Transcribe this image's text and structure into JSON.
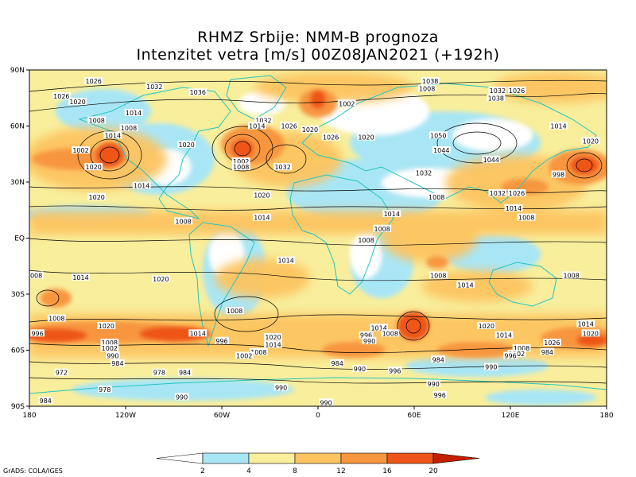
{
  "header": {
    "title": "RHMZ Srbije: NMM-B prognoza",
    "subtitle": "Intenzitet vetra [m/s] 00Z08JAN2021 (+192h)"
  },
  "axes": {
    "lon_labels": [
      "180",
      "120W",
      "60W",
      "0",
      "60E",
      "120E",
      "180"
    ],
    "lat_labels": [
      "90N",
      "60N",
      "30N",
      "EQ",
      "30S",
      "60S",
      "90S"
    ]
  },
  "colorbar": {
    "ticks": [
      "2",
      "4",
      "8",
      "12",
      "16",
      "20"
    ],
    "colors": [
      "#ffffff",
      "#a9e6f5",
      "#f8ee9c",
      "#fdc461",
      "#f89640",
      "#ee5419",
      "#c41e00"
    ]
  },
  "colors": {
    "land_outline": "#22c6c0",
    "isobar": "#000000",
    "frame": "#000000"
  },
  "isobars": {
    "labels": [
      {
        "text": "1026",
        "lon": -140,
        "lat": 84
      },
      {
        "text": "1032",
        "lon": -102,
        "lat": 81
      },
      {
        "text": "1036",
        "lon": -75,
        "lat": 78
      },
      {
        "text": "1026",
        "lon": -160,
        "lat": 76
      },
      {
        "text": "1020",
        "lon": -150,
        "lat": 73
      },
      {
        "text": "1014",
        "lon": -115,
        "lat": 67
      },
      {
        "text": "1008",
        "lon": -138,
        "lat": 63
      },
      {
        "text": "1008",
        "lon": -118,
        "lat": 59
      },
      {
        "text": "1014",
        "lon": -128,
        "lat": 55
      },
      {
        "text": "1002",
        "lon": -148,
        "lat": 47
      },
      {
        "text": "1020",
        "lon": -82,
        "lat": 50
      },
      {
        "text": "1020",
        "lon": -140,
        "lat": 38
      },
      {
        "text": "1014",
        "lon": -110,
        "lat": 28
      },
      {
        "text": "1020",
        "lon": -138,
        "lat": 22
      },
      {
        "text": "1008",
        "lon": -84,
        "lat": 9
      },
      {
        "text": "1014",
        "lon": -35,
        "lat": 11
      },
      {
        "text": "1020",
        "lon": -35,
        "lat": 23
      },
      {
        "text": "1032",
        "lon": -34,
        "lat": 63
      },
      {
        "text": "1026",
        "lon": -18,
        "lat": 60
      },
      {
        "text": "1014",
        "lon": -38,
        "lat": 60
      },
      {
        "text": "1020",
        "lon": -5,
        "lat": 58
      },
      {
        "text": "1002",
        "lon": -48,
        "lat": 41
      },
      {
        "text": "1008",
        "lon": -48,
        "lat": 38
      },
      {
        "text": "1032",
        "lon": -22,
        "lat": 38
      },
      {
        "text": "1002",
        "lon": 18,
        "lat": 72
      },
      {
        "text": "1026",
        "lon": 8,
        "lat": 54
      },
      {
        "text": "1020",
        "lon": 30,
        "lat": 54
      },
      {
        "text": "1038",
        "lon": 70,
        "lat": 84
      },
      {
        "text": "1008",
        "lon": 68,
        "lat": 80
      },
      {
        "text": "1032",
        "lon": 112,
        "lat": 79
      },
      {
        "text": "1038",
        "lon": 111,
        "lat": 75
      },
      {
        "text": "1026",
        "lon": 124,
        "lat": 79
      },
      {
        "text": "1050",
        "lon": 75,
        "lat": 55
      },
      {
        "text": "1044",
        "lon": 77,
        "lat": 47
      },
      {
        "text": "1044",
        "lon": 108,
        "lat": 42
      },
      {
        "text": "1032",
        "lon": 66,
        "lat": 35
      },
      {
        "text": "1014",
        "lon": 150,
        "lat": 60
      },
      {
        "text": "1020",
        "lon": 170,
        "lat": 52
      },
      {
        "text": "998",
        "lon": 150,
        "lat": 34
      },
      {
        "text": "1032",
        "lon": 112,
        "lat": 24
      },
      {
        "text": "1026",
        "lon": 124,
        "lat": 24
      },
      {
        "text": "1014",
        "lon": 122,
        "lat": 16
      },
      {
        "text": "1008",
        "lon": 130,
        "lat": 11
      },
      {
        "text": "1008",
        "lon": 74,
        "lat": 22
      },
      {
        "text": "1014",
        "lon": 46,
        "lat": 13
      },
      {
        "text": "1008",
        "lon": 40,
        "lat": 5
      },
      {
        "text": "1008",
        "lon": 30,
        "lat": -1
      },
      {
        "text": "1014",
        "lon": -20,
        "lat": -12
      },
      {
        "text": "1008",
        "lon": -163,
        "lat": -43
      },
      {
        "text": "1014",
        "lon": -148,
        "lat": -21
      },
      {
        "text": "1020",
        "lon": -98,
        "lat": -22
      },
      {
        "text": "1020",
        "lon": -132,
        "lat": -47
      },
      {
        "text": "996",
        "lon": -175,
        "lat": -51
      },
      {
        "text": "1008",
        "lon": -130,
        "lat": -56
      },
      {
        "text": "1002",
        "lon": -130,
        "lat": -59
      },
      {
        "text": "990",
        "lon": -128,
        "lat": -63
      },
      {
        "text": "984",
        "lon": -125,
        "lat": -67
      },
      {
        "text": "1014",
        "lon": -75,
        "lat": -51
      },
      {
        "text": "996",
        "lon": -60,
        "lat": -55
      },
      {
        "text": "1008",
        "lon": -52,
        "lat": -39
      },
      {
        "text": "1020",
        "lon": -28,
        "lat": -53
      },
      {
        "text": "1014",
        "lon": -28,
        "lat": -57
      },
      {
        "text": "1008",
        "lon": -37,
        "lat": -61
      },
      {
        "text": "1002",
        "lon": -46,
        "lat": -63
      },
      {
        "text": "972",
        "lon": -160,
        "lat": -72
      },
      {
        "text": "978",
        "lon": -99,
        "lat": -72
      },
      {
        "text": "984",
        "lon": -83,
        "lat": -72
      },
      {
        "text": "978",
        "lon": -133,
        "lat": -81
      },
      {
        "text": "984",
        "lon": -170,
        "lat": -87
      },
      {
        "text": "990",
        "lon": -85,
        "lat": -85
      },
      {
        "text": "990",
        "lon": -23,
        "lat": -80
      },
      {
        "text": "990",
        "lon": 5,
        "lat": -88
      },
      {
        "text": "984",
        "lon": 12,
        "lat": -67
      },
      {
        "text": "990",
        "lon": 26,
        "lat": -70
      },
      {
        "text": "996",
        "lon": 48,
        "lat": -71
      },
      {
        "text": "990",
        "lon": 72,
        "lat": -78
      },
      {
        "text": "996",
        "lon": 76,
        "lat": -84
      },
      {
        "text": "1014",
        "lon": 38,
        "lat": -48
      },
      {
        "text": "1008",
        "lon": 45,
        "lat": -51
      },
      {
        "text": "996",
        "lon": 30,
        "lat": -52
      },
      {
        "text": "990",
        "lon": 32,
        "lat": -55
      },
      {
        "text": "1008",
        "lon": 75,
        "lat": -20
      },
      {
        "text": "1014",
        "lon": 92,
        "lat": -25
      },
      {
        "text": "1020",
        "lon": 105,
        "lat": -47
      },
      {
        "text": "1014",
        "lon": 116,
        "lat": -52
      },
      {
        "text": "984",
        "lon": 75,
        "lat": -65
      },
      {
        "text": "990",
        "lon": 108,
        "lat": -69
      },
      {
        "text": "1008",
        "lon": 127,
        "lat": -59
      },
      {
        "text": "1002",
        "lon": 124,
        "lat": -62
      },
      {
        "text": "996",
        "lon": 120,
        "lat": -63
      },
      {
        "text": "1008",
        "lon": 158,
        "lat": -20
      },
      {
        "text": "1026",
        "lon": 146,
        "lat": -56
      },
      {
        "text": "1014",
        "lon": 167,
        "lat": -46
      },
      {
        "text": "1020",
        "lon": 170,
        "lat": -51
      },
      {
        "text": "984",
        "lon": 143,
        "lat": -61
      },
      {
        "text": "1008",
        "lon": -177,
        "lat": -20
      }
    ]
  }
}
